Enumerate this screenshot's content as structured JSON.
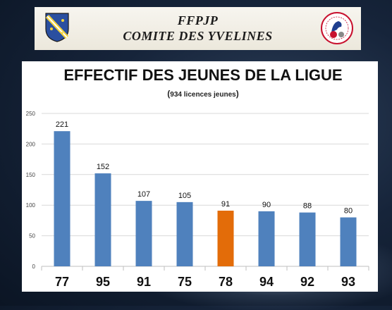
{
  "header": {
    "line1": "FFPJP",
    "line2": "COMITE DES YVELINES",
    "crest_icon": "yvelines-coat-of-arms-icon",
    "logo_icon": "petanque-federation-logo-icon"
  },
  "chart_data": {
    "type": "bar",
    "title": "EFFECTIF DES JEUNES DE LA LIGUE",
    "subtitle_open": "(",
    "subtitle": "934 licences jeunes",
    "subtitle_close": ")",
    "categories": [
      "77",
      "95",
      "91",
      "75",
      "78",
      "94",
      "92",
      "93"
    ],
    "values": [
      221,
      152,
      107,
      105,
      91,
      90,
      88,
      80
    ],
    "ylim": [
      0,
      250
    ],
    "yticks": [
      0,
      50,
      100,
      150,
      200,
      250
    ],
    "grid": true,
    "colors": {
      "bar": "#4f81bd",
      "highlight": "#e36c09",
      "grid": "#d9d9d9",
      "axis": "#bfbfbf"
    },
    "highlight_category": "78"
  }
}
